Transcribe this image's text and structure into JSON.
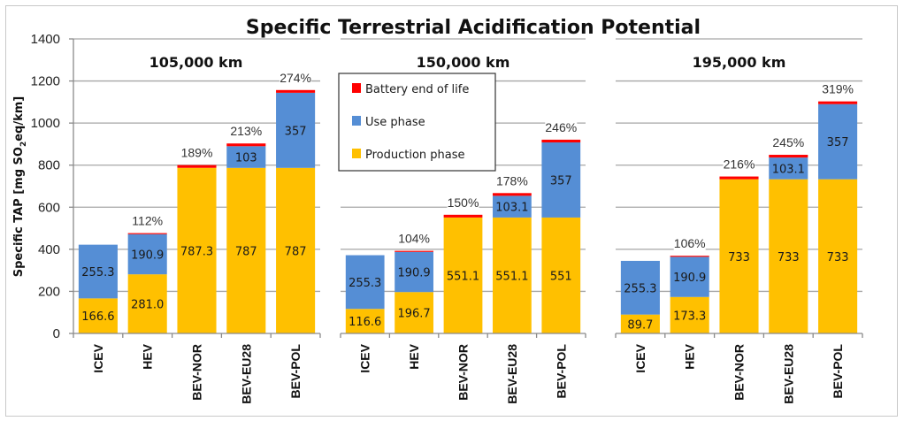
{
  "chart_data": {
    "type": "bar",
    "stacked": true,
    "title": "Specific Terrestrial Acidification Potential",
    "ylabel": "Specific TAP [mg SO2eq/km]",
    "ylabel_parts": {
      "pre": "Specific TAP [mg SO",
      "sub": "2",
      "post": "eq/km]"
    },
    "ylim": [
      0,
      1400
    ],
    "yticks": [
      0,
      200,
      400,
      600,
      800,
      1000,
      1200,
      1400
    ],
    "grid": true,
    "legend": {
      "placement": "inside panel 2, top-left",
      "entries": [
        {
          "name": "Battery end of life",
          "color": "#ff0000"
        },
        {
          "name": "Use phase",
          "color": "#558ed5"
        },
        {
          "name": "Production phase",
          "color": "#ffc000"
        }
      ]
    },
    "categories": [
      "ICEV",
      "HEV",
      "BEV-NOR",
      "BEV-EU28",
      "BEV-POL"
    ],
    "panels": [
      {
        "title": "105,000 km",
        "series": [
          {
            "name": "Production phase",
            "values": [
              166.6,
              281.0,
              787.3,
              787,
              787
            ],
            "labels": [
              "166.6",
              "281.0",
              "787.3",
              "787",
              "787"
            ]
          },
          {
            "name": "Use phase",
            "values": [
              255.3,
              190.9,
              0,
              103,
              357
            ],
            "labels": [
              "255.3",
              "190.9",
              "",
              "103",
              "357"
            ]
          },
          {
            "name": "Battery end of life",
            "values": [
              0,
              5,
              13,
              13,
              13
            ]
          }
        ],
        "percent_labels": [
          "",
          "112%",
          "189%",
          "213%",
          "274%"
        ]
      },
      {
        "title": "150,000 km",
        "series": [
          {
            "name": "Production phase",
            "values": [
              116.6,
              196.7,
              551.1,
              551.1,
              551
            ],
            "labels": [
              "116.6",
              "196.7",
              "551.1",
              "551.1",
              "551"
            ]
          },
          {
            "name": "Use phase",
            "values": [
              255.3,
              190.9,
              0,
              103.1,
              357
            ],
            "labels": [
              "255.3",
              "190.9",
              "",
              "103.1",
              "357"
            ]
          },
          {
            "name": "Battery end of life",
            "values": [
              0,
              5,
              13,
              13,
              13
            ]
          }
        ],
        "percent_labels": [
          "",
          "104%",
          "150%",
          "178%",
          "246%"
        ]
      },
      {
        "title": "195,000 km",
        "series": [
          {
            "name": "Production phase",
            "values": [
              89.7,
              173.3,
              733,
              733,
              733
            ],
            "labels": [
              "89.7",
              "173.3",
              "733",
              "733",
              "733"
            ]
          },
          {
            "name": "Use phase",
            "values": [
              255.3,
              190.9,
              0,
              103.1,
              357
            ],
            "labels": [
              "255.3",
              "190.9",
              "",
              "103.1",
              "357"
            ]
          },
          {
            "name": "Battery end of life",
            "values": [
              0,
              5,
              13,
              13,
              13
            ]
          }
        ],
        "percent_labels": [
          "",
          "106%",
          "216%",
          "245%",
          "319%"
        ]
      }
    ]
  }
}
